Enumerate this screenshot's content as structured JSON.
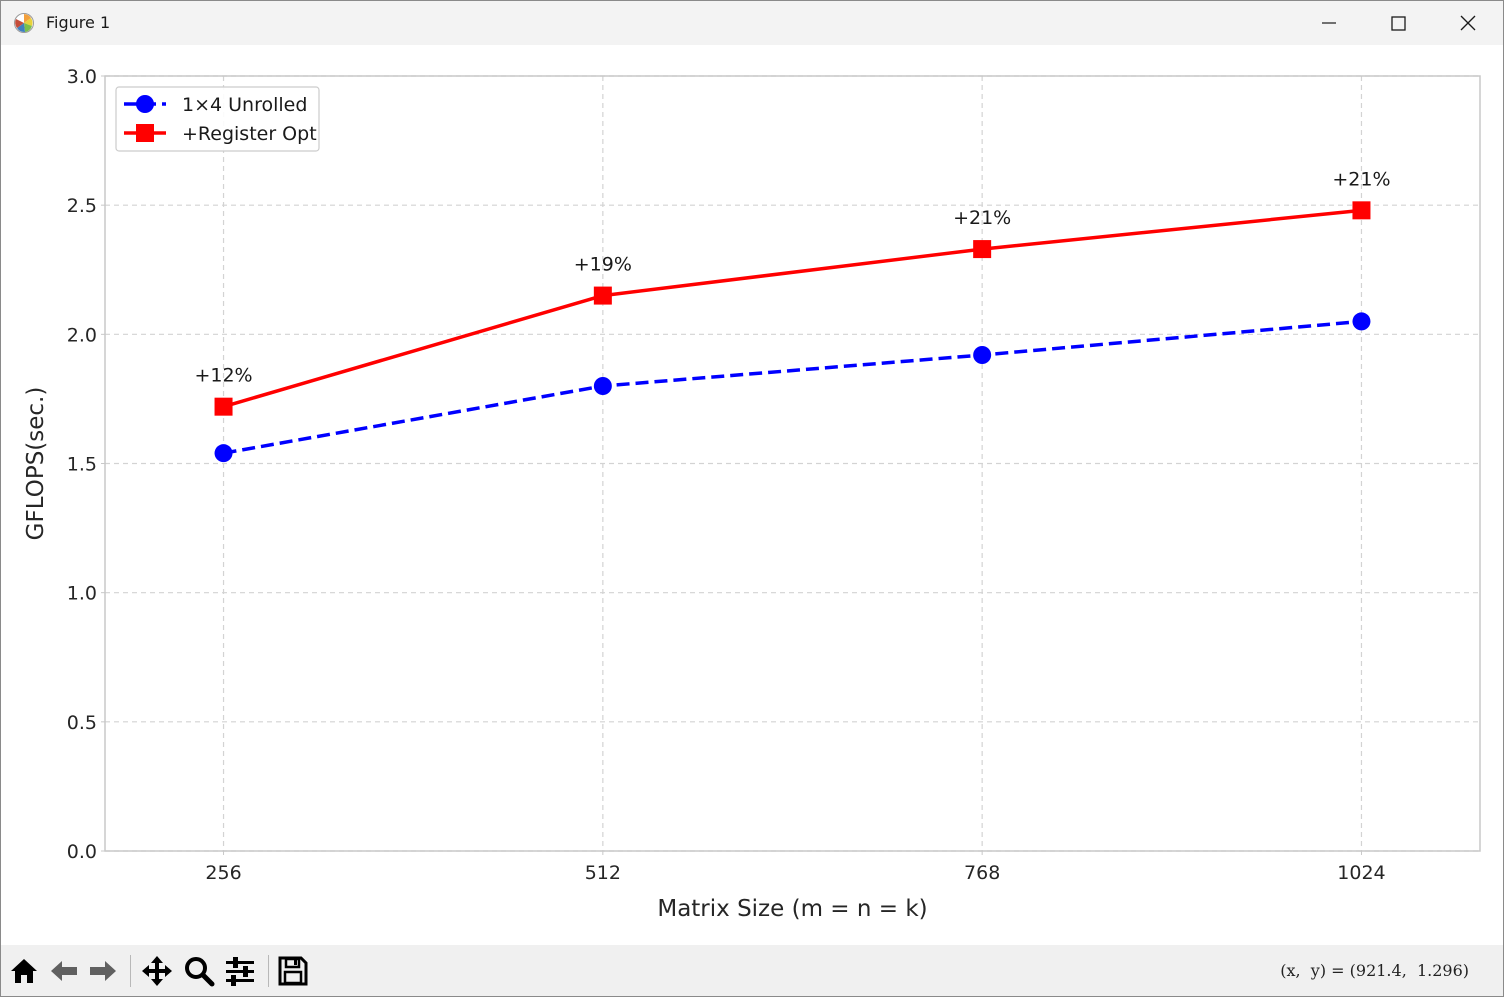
{
  "window": {
    "title": "Figure 1",
    "icons": {
      "app": "matplotlib-icon",
      "minimize": "minimize-icon",
      "maximize": "maximize-icon",
      "close": "close-icon"
    }
  },
  "toolbar": {
    "tools": [
      "home-icon",
      "back-arrow-icon",
      "forward-arrow-icon",
      "pan-icon",
      "zoom-icon",
      "configure-subplots-icon",
      "save-icon"
    ],
    "coords": "(x,  y) = (921.4,  1.296)"
  },
  "chart_data": {
    "type": "line",
    "title": "",
    "xlabel": "Matrix Size (m = n = k)",
    "ylabel": "GFLOPS(sec.)",
    "x": [
      256,
      512,
      768,
      1024
    ],
    "x_tick_labels": [
      "256",
      "512",
      "768",
      "1024"
    ],
    "xlim": [
      176,
      1104
    ],
    "ylim": [
      0.0,
      3.0
    ],
    "y_ticks": [
      0.0,
      0.5,
      1.0,
      1.5,
      2.0,
      2.5,
      3.0
    ],
    "y_tick_labels": [
      "0.0",
      "0.5",
      "1.0",
      "1.5",
      "2.0",
      "2.5",
      "3.0"
    ],
    "grid": true,
    "legend_position": "top-left",
    "series": [
      {
        "name": "1×4 Unrolled",
        "values": [
          1.54,
          1.8,
          1.92,
          2.05
        ],
        "color": "#0000ff",
        "line_style": "dashed",
        "marker": "circle"
      },
      {
        "name": "+Register Opt",
        "values": [
          1.72,
          2.15,
          2.33,
          2.48
        ],
        "color": "#ff0000",
        "line_style": "solid",
        "marker": "square"
      }
    ],
    "annotations": [
      "+12%",
      "+19%",
      "+21%",
      "+21%"
    ]
  }
}
